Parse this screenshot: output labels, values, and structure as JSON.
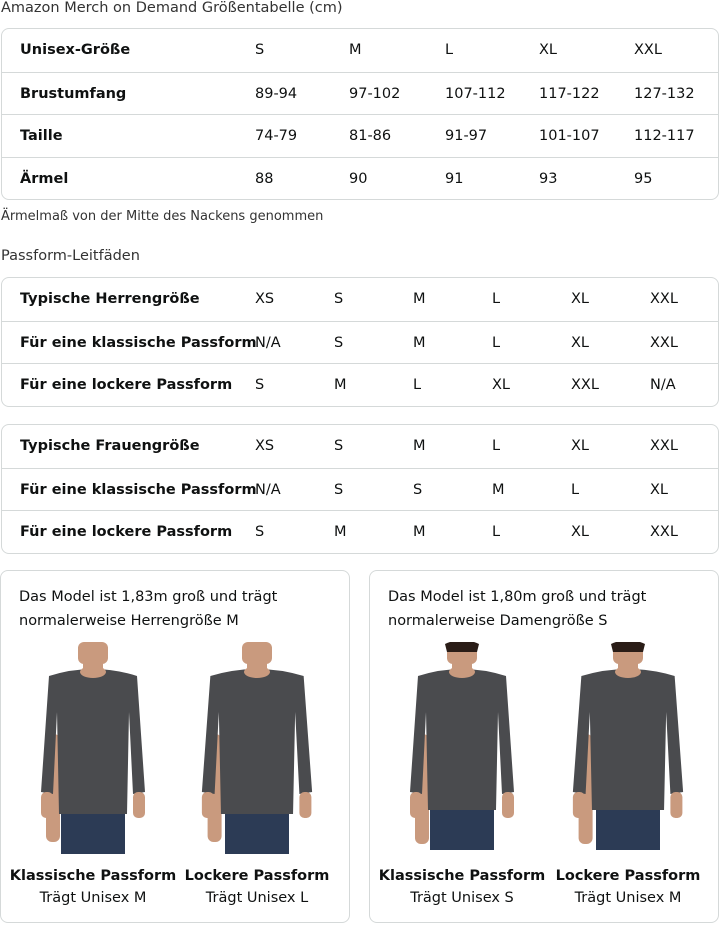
{
  "title": "Amazon Merch on Demand Größentabelle (cm)",
  "unisex_table": {
    "rows": [
      [
        "Unisex-Größe",
        "S",
        "M",
        "L",
        "XL",
        "XXL"
      ],
      [
        "Brustumfang",
        "89-94",
        "97-102",
        "107-112",
        "117-122",
        "127-132"
      ],
      [
        "Taille",
        "74-79",
        "81-86",
        "91-97",
        "101-107",
        "112-117"
      ],
      [
        "Ärmel",
        "88",
        "90",
        "91",
        "93",
        "95"
      ]
    ]
  },
  "note": "Ärmelmaß von der Mitte des Nackens genommen",
  "fit_title": "Passform-Leitfäden",
  "men_table": {
    "rows": [
      [
        "Typische Herrengröße",
        "XS",
        "S",
        "M",
        "L",
        "XL",
        "XXL"
      ],
      [
        "Für eine klassische Passform",
        "N/A",
        "S",
        "M",
        "L",
        "XL",
        "XXL"
      ],
      [
        "Für eine lockere Passform",
        "S",
        "M",
        "L",
        "XL",
        "XXL",
        "N/A"
      ]
    ]
  },
  "women_table": {
    "rows": [
      [
        "Typische Frauengröße",
        "XS",
        "S",
        "M",
        "L",
        "XL",
        "XXL"
      ],
      [
        "Für eine klassische Passform",
        "N/A",
        "S",
        "S",
        "M",
        "L",
        "XL"
      ],
      [
        "Für eine lockere Passform",
        "S",
        "M",
        "M",
        "L",
        "XL",
        "XXL"
      ]
    ]
  },
  "cards": [
    {
      "desc": "Das Model ist 1,83m groß und trägt normalerweise Herrengröße M",
      "figures": [
        {
          "fit": "Klassische Passform",
          "wears": "Trägt Unisex M"
        },
        {
          "fit": "Lockere Passform",
          "wears": "Trägt Unisex L"
        }
      ]
    },
    {
      "desc": "Das Model ist 1,80m groß und trägt normalerweise Damengröße S",
      "figures": [
        {
          "fit": "Klassische Passform",
          "wears": "Trägt Unisex S"
        },
        {
          "fit": "Lockere Passform",
          "wears": "Trägt Unisex M"
        }
      ]
    }
  ],
  "colors": {
    "border": "#d5d9d9",
    "shirt": "#4a4b4e",
    "jeans": "#2c3b55",
    "skin": "#c99a7e"
  }
}
